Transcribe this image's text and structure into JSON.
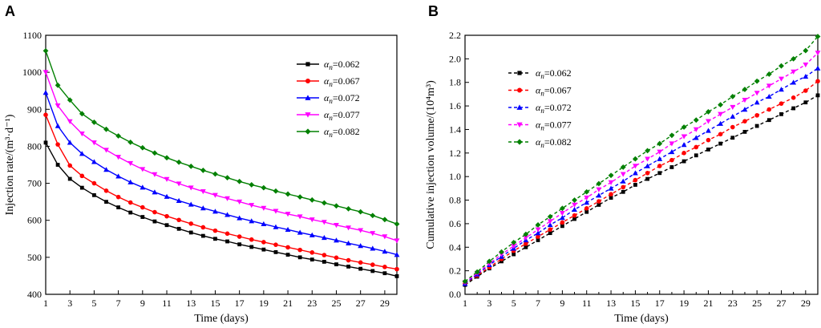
{
  "chart_data": [
    {
      "panel_label": "A",
      "type": "line",
      "title": "",
      "xlabel": "Time (days)",
      "ylabel": "Injection rate/(m³·d⁻¹)",
      "xlim": [
        1,
        30
      ],
      "ylim": [
        400,
        1100
      ],
      "xticks": [
        1,
        3,
        5,
        7,
        9,
        11,
        13,
        15,
        17,
        19,
        21,
        23,
        25,
        27,
        29
      ],
      "yticks": [
        400,
        500,
        600,
        700,
        800,
        900,
        1000,
        1100
      ],
      "x": [
        1,
        2,
        3,
        4,
        5,
        6,
        7,
        8,
        9,
        10,
        11,
        12,
        13,
        14,
        15,
        16,
        17,
        18,
        19,
        20,
        21,
        22,
        23,
        24,
        25,
        26,
        27,
        28,
        29,
        30
      ],
      "legend_position": "top-right",
      "series": [
        {
          "name": "αn=0.062",
          "name_prefix": "α",
          "name_sub": "n",
          "name_value": "=0.062",
          "color": "#000000",
          "marker": "square",
          "dashed": false,
          "values": [
            810,
            750,
            712,
            688,
            668,
            650,
            635,
            621,
            609,
            597,
            587,
            577,
            567,
            558,
            550,
            543,
            535,
            528,
            521,
            514,
            507,
            500,
            494,
            488,
            481,
            475,
            469,
            463,
            457,
            449
          ]
        },
        {
          "name": "αn=0.067",
          "name_prefix": "α",
          "name_sub": "n",
          "name_value": "=0.067",
          "color": "#ff0000",
          "marker": "circle",
          "dashed": false,
          "values": [
            885,
            805,
            748,
            720,
            700,
            680,
            663,
            648,
            635,
            622,
            611,
            601,
            591,
            581,
            572,
            564,
            556,
            548,
            541,
            534,
            527,
            520,
            513,
            506,
            499,
            492,
            486,
            480,
            474,
            468
          ]
        },
        {
          "name": "αn=0.072",
          "name_prefix": "α",
          "name_sub": "n",
          "name_value": "=0.072",
          "color": "#0000ff",
          "marker": "triangle-up",
          "dashed": false,
          "values": [
            945,
            855,
            810,
            780,
            758,
            737,
            719,
            703,
            689,
            676,
            664,
            653,
            643,
            633,
            624,
            615,
            606,
            598,
            590,
            582,
            575,
            567,
            560,
            553,
            546,
            538,
            531,
            524,
            516,
            507
          ]
        },
        {
          "name": "αn=0.077",
          "name_prefix": "α",
          "name_sub": "n",
          "name_value": "=0.077",
          "color": "#ff00ff",
          "marker": "triangle-down",
          "dashed": false,
          "values": [
            1000,
            910,
            867,
            834,
            810,
            790,
            771,
            754,
            738,
            724,
            711,
            699,
            688,
            678,
            668,
            659,
            650,
            641,
            633,
            625,
            617,
            610,
            602,
            595,
            587,
            580,
            573,
            565,
            556,
            545
          ]
        },
        {
          "name": "αn=0.082",
          "name_prefix": "α",
          "name_sub": "n",
          "name_value": "=0.082",
          "color": "#008000",
          "marker": "diamond",
          "dashed": false,
          "values": [
            1058,
            965,
            925,
            888,
            865,
            846,
            828,
            811,
            796,
            782,
            769,
            757,
            746,
            735,
            725,
            715,
            705,
            696,
            688,
            679,
            671,
            663,
            655,
            647,
            639,
            631,
            623,
            613,
            602,
            590
          ]
        }
      ]
    },
    {
      "panel_label": "B",
      "type": "line",
      "title": "",
      "xlabel": "Time (days)",
      "ylabel": "Cumulative injection volume/(10⁴m³)",
      "xlim": [
        1,
        30
      ],
      "ylim": [
        0.0,
        2.2
      ],
      "xticks": [
        1,
        3,
        5,
        7,
        9,
        11,
        13,
        15,
        17,
        19,
        21,
        23,
        25,
        27,
        29
      ],
      "xticks_minor": [
        2,
        4,
        6,
        8,
        10,
        12,
        14,
        16,
        18,
        20,
        22,
        24,
        26,
        28,
        30
      ],
      "yticks": [
        "0.0",
        "0.2",
        "0.4",
        "0.6",
        "0.8",
        "1.0",
        "1.2",
        "1.4",
        "1.6",
        "1.8",
        "2.0",
        "2.2"
      ],
      "x": [
        1,
        2,
        3,
        4,
        5,
        6,
        7,
        8,
        9,
        10,
        11,
        12,
        13,
        14,
        15,
        16,
        17,
        18,
        19,
        20,
        21,
        22,
        23,
        24,
        25,
        26,
        27,
        28,
        29,
        30
      ],
      "legend_position": "top-left",
      "series": [
        {
          "name": "αn=0.062",
          "name_prefix": "α",
          "name_sub": "n",
          "name_value": "=0.062",
          "color": "#000000",
          "marker": "square",
          "dashed": true,
          "values": [
            0.08,
            0.15,
            0.22,
            0.28,
            0.34,
            0.4,
            0.46,
            0.52,
            0.58,
            0.64,
            0.7,
            0.76,
            0.82,
            0.87,
            0.93,
            0.98,
            1.03,
            1.08,
            1.13,
            1.18,
            1.23,
            1.28,
            1.33,
            1.38,
            1.43,
            1.48,
            1.53,
            1.58,
            1.63,
            1.69
          ]
        },
        {
          "name": "αn=0.067",
          "name_prefix": "α",
          "name_sub": "n",
          "name_value": "=0.067",
          "color": "#ff0000",
          "marker": "circle",
          "dashed": true,
          "values": [
            0.09,
            0.16,
            0.23,
            0.3,
            0.37,
            0.43,
            0.49,
            0.55,
            0.61,
            0.67,
            0.73,
            0.79,
            0.85,
            0.91,
            0.97,
            1.03,
            1.09,
            1.14,
            1.2,
            1.25,
            1.31,
            1.36,
            1.42,
            1.47,
            1.52,
            1.57,
            1.62,
            1.67,
            1.73,
            1.81
          ]
        },
        {
          "name": "αn=0.072",
          "name_prefix": "α",
          "name_sub": "n",
          "name_value": "=0.072",
          "color": "#0000ff",
          "marker": "triangle-up",
          "dashed": true,
          "values": [
            0.09,
            0.17,
            0.25,
            0.32,
            0.39,
            0.46,
            0.52,
            0.59,
            0.65,
            0.72,
            0.78,
            0.84,
            0.9,
            0.96,
            1.03,
            1.09,
            1.15,
            1.21,
            1.27,
            1.33,
            1.39,
            1.45,
            1.51,
            1.57,
            1.63,
            1.68,
            1.74,
            1.8,
            1.85,
            1.92
          ]
        },
        {
          "name": "αn=0.077",
          "name_prefix": "α",
          "name_sub": "n",
          "name_value": "=0.077",
          "color": "#ff00ff",
          "marker": "triangle-down",
          "dashed": true,
          "values": [
            0.1,
            0.18,
            0.26,
            0.34,
            0.41,
            0.48,
            0.55,
            0.62,
            0.69,
            0.76,
            0.82,
            0.89,
            0.95,
            1.02,
            1.09,
            1.15,
            1.21,
            1.28,
            1.34,
            1.4,
            1.47,
            1.53,
            1.59,
            1.65,
            1.71,
            1.77,
            1.83,
            1.89,
            1.95,
            2.05
          ]
        },
        {
          "name": "αn=0.082",
          "name_prefix": "α",
          "name_sub": "n",
          "name_value": "=0.082",
          "color": "#008000",
          "marker": "diamond",
          "dashed": true,
          "values": [
            0.11,
            0.19,
            0.28,
            0.36,
            0.44,
            0.51,
            0.59,
            0.66,
            0.73,
            0.8,
            0.87,
            0.94,
            1.01,
            1.08,
            1.15,
            1.22,
            1.28,
            1.35,
            1.42,
            1.48,
            1.55,
            1.61,
            1.68,
            1.74,
            1.81,
            1.87,
            1.94,
            2.0,
            2.07,
            2.19
          ]
        }
      ]
    }
  ]
}
